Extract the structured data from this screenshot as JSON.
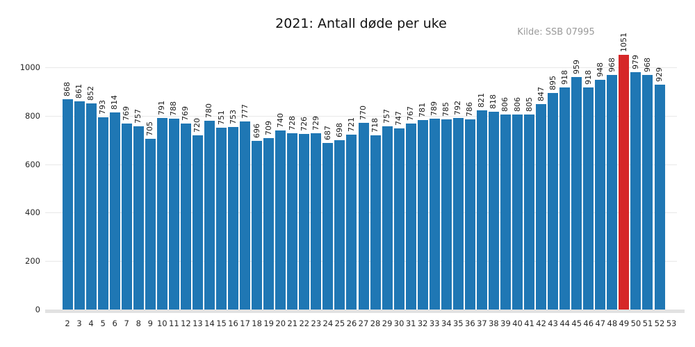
{
  "chart_data": {
    "type": "bar",
    "title": "2021: Antall døde per uke",
    "source_label": "Kilde: SSB 07995",
    "xlabel": "",
    "ylabel": "",
    "categories": [
      2,
      3,
      4,
      5,
      6,
      7,
      8,
      9,
      10,
      11,
      12,
      13,
      14,
      15,
      16,
      17,
      18,
      19,
      20,
      21,
      22,
      23,
      24,
      25,
      26,
      27,
      28,
      29,
      30,
      31,
      32,
      33,
      34,
      35,
      36,
      37,
      38,
      39,
      40,
      41,
      42,
      43,
      44,
      45,
      46,
      47,
      48,
      49,
      50,
      51,
      52,
      53
    ],
    "values": [
      868,
      861,
      852,
      793,
      814,
      769,
      757,
      705,
      791,
      788,
      769,
      720,
      780,
      751,
      753,
      777,
      696,
      709,
      740,
      728,
      726,
      729,
      687,
      698,
      721,
      770,
      718,
      757,
      747,
      767,
      781,
      789,
      785,
      792,
      786,
      821,
      818,
      806,
      806,
      805,
      847,
      895,
      918,
      959,
      918,
      948,
      968,
      1051,
      979,
      968,
      929,
      null
    ],
    "yticks": [
      0,
      200,
      400,
      600,
      800,
      1000
    ],
    "ylim": [
      0,
      1000
    ],
    "grid": true,
    "legend": false,
    "value_labels_rotated": true,
    "bar_color": "#1f77b4",
    "highlight_category": 49,
    "highlight_color": "#d62728"
  }
}
